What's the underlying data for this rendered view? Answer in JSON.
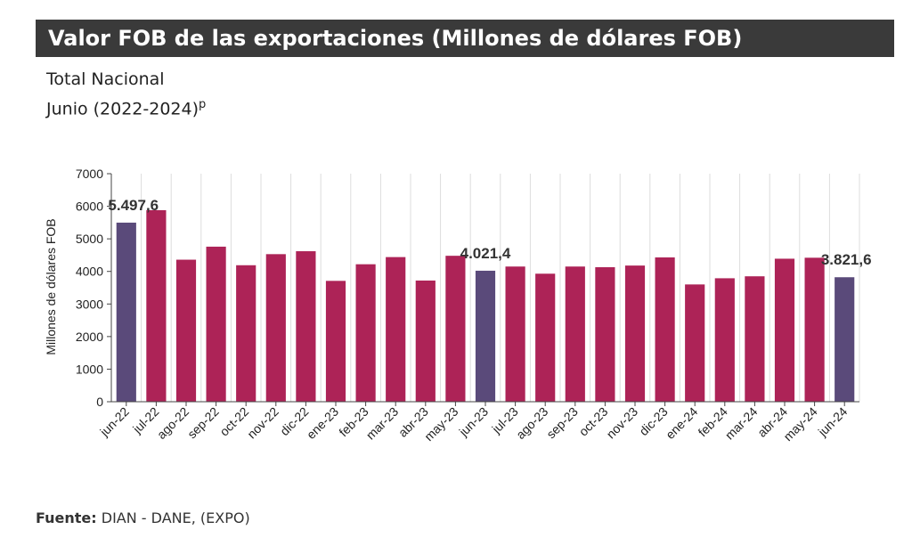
{
  "header": {
    "title": "Valor FOB de las exportaciones (Millones de dólares FOB)",
    "subtitle1": "Total Nacional",
    "subtitle2": "Junio (2022-2024)",
    "subtitle2_sup": "p"
  },
  "footer": {
    "source_label": "Fuente:",
    "source_text": " DIAN - DANE, (EXPO)"
  },
  "colors": {
    "highlight": "#5a4a7a",
    "default": "#ad2357",
    "axis": "#444444",
    "grid": "#dddddd"
  },
  "chart_data": {
    "type": "bar",
    "title": "Valor FOB de las exportaciones (Millones de dólares FOB)",
    "ylabel": "Millones de dólares FOB",
    "xlabel": "",
    "ylim": [
      0,
      7000
    ],
    "yticks": [
      0,
      1000,
      2000,
      3000,
      4000,
      5000,
      6000,
      7000
    ],
    "grid": "vertical",
    "categories": [
      "jun-22",
      "jul-22",
      "ago-22",
      "sep-22",
      "oct-22",
      "nov-22",
      "dic-22",
      "ene-23",
      "feb-23",
      "mar-23",
      "abr-23",
      "may-23",
      "jun-23",
      "jul-23",
      "ago-23",
      "sep-23",
      "oct-23",
      "nov-23",
      "dic-23",
      "ene-24",
      "feb-24",
      "mar-24",
      "abr-24",
      "may-24",
      "jun-24"
    ],
    "values": [
      5497.6,
      5880,
      4360,
      4760,
      4190,
      4530,
      4620,
      3710,
      4220,
      4440,
      3720,
      4480,
      4021.4,
      4150,
      3930,
      4150,
      4130,
      4180,
      4430,
      3600,
      3790,
      3850,
      4390,
      4420,
      3821.6
    ],
    "highlighted": [
      "jun-22",
      "jun-23",
      "jun-24"
    ],
    "annotations": [
      {
        "category": "jun-22",
        "label": "5.497,6"
      },
      {
        "category": "jun-23",
        "label": "4.021,4"
      },
      {
        "category": "jun-24",
        "label": "3.821,6"
      }
    ]
  }
}
